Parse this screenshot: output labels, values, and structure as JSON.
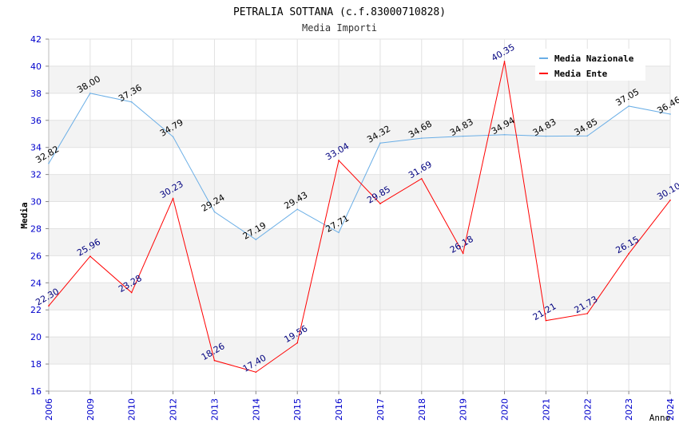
{
  "chart_data": {
    "type": "line",
    "title": "PETRALIA SOTTANA (c.f.83000710828)",
    "subtitle": "Media Importi",
    "xlabel": "Anno",
    "ylabel": "Media",
    "ylim": [
      16,
      42
    ],
    "yticks": [
      "16",
      "18",
      "20",
      "22",
      "24",
      "26",
      "28",
      "30",
      "32",
      "34",
      "36",
      "38",
      "40",
      "42"
    ],
    "categories": [
      "2006",
      "2009",
      "2010",
      "2012",
      "2013",
      "2014",
      "2015",
      "2016",
      "2017",
      "2018",
      "2019",
      "2020",
      "2021",
      "2022",
      "2023",
      "2024"
    ],
    "legend_position": "top-right",
    "grid": true,
    "series": [
      {
        "name": "Media Nazionale",
        "color": "#6aaee6",
        "label_color": "#000000",
        "values": [
          32.82,
          38.0,
          37.36,
          34.79,
          29.24,
          27.19,
          29.43,
          27.71,
          34.32,
          34.68,
          34.83,
          34.94,
          34.83,
          34.85,
          37.05,
          36.46
        ],
        "labels": [
          "32.82",
          "38.00",
          "37.36",
          "34.79",
          "29.24",
          "27.19",
          "29.43",
          "27.71",
          "34.32",
          "34.68",
          "34.83",
          "34.94",
          "34.83",
          "34.85",
          "37.05",
          "36.46"
        ]
      },
      {
        "name": "Media Ente",
        "color": "#ff0000",
        "label_color": "#00007f",
        "values": [
          22.3,
          25.96,
          23.28,
          30.23,
          18.26,
          17.4,
          19.56,
          33.04,
          29.85,
          31.69,
          26.18,
          40.35,
          21.21,
          21.73,
          26.15,
          30.1
        ],
        "labels": [
          "22.30",
          "25.96",
          "23.28",
          "30.23",
          "18.26",
          "17.40",
          "19.56",
          "33.04",
          "29.85",
          "31.69",
          "26.18",
          "40.35",
          "21.21",
          "21.73",
          "26.15",
          "30.10"
        ]
      }
    ]
  }
}
